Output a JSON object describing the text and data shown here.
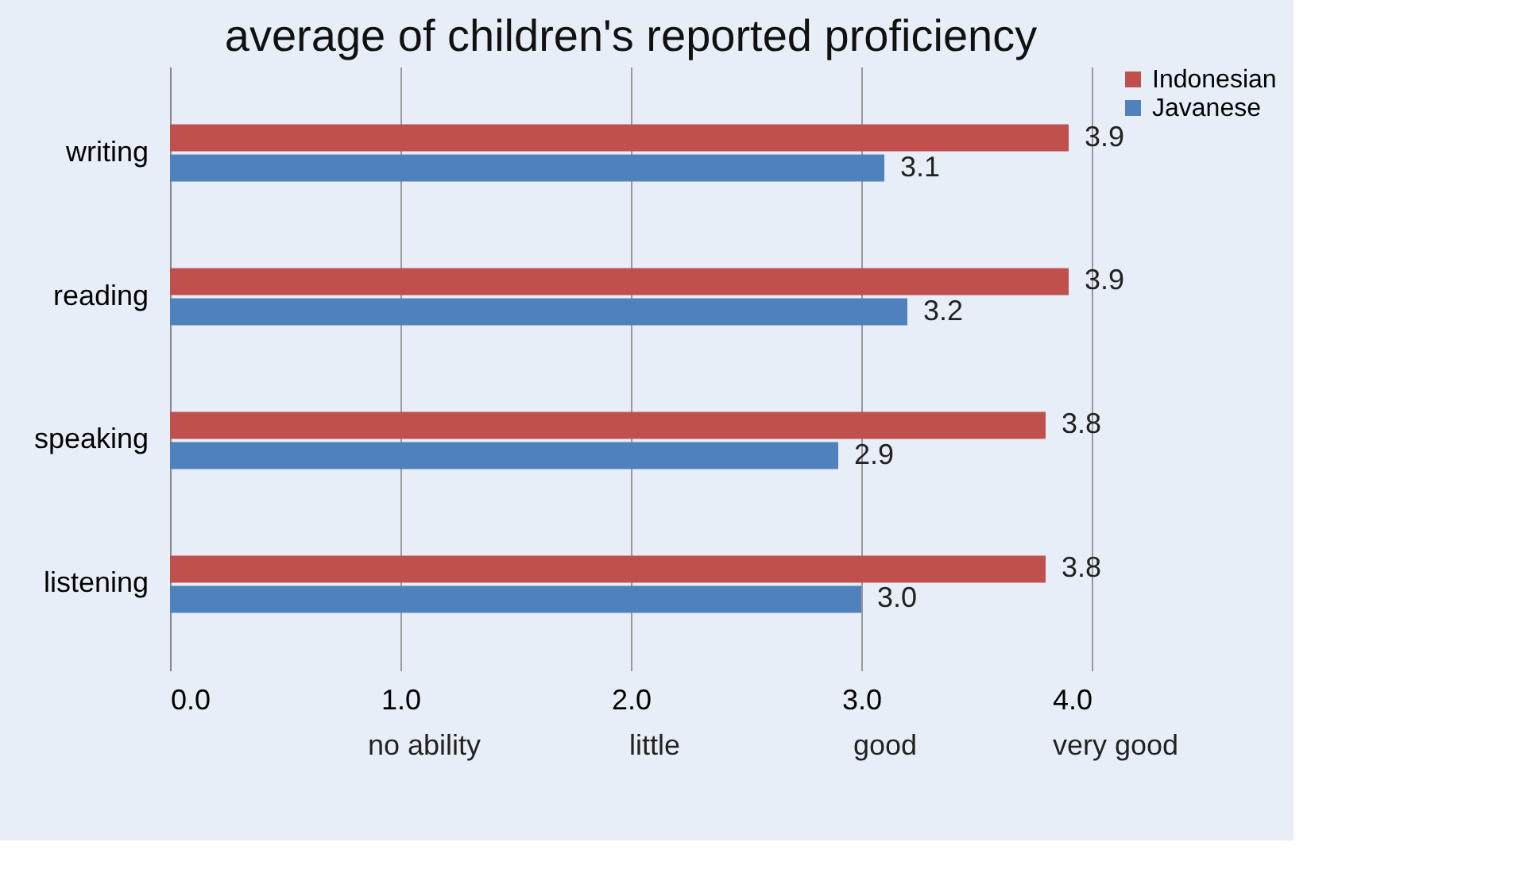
{
  "chart_data": {
    "type": "bar",
    "orientation": "horizontal",
    "title": "average of children's reported proficiency",
    "categories": [
      "writing",
      "reading",
      "speaking",
      "listening"
    ],
    "series": [
      {
        "name": "Indonesian",
        "color": "#c0504d",
        "values": [
          3.9,
          3.9,
          3.8,
          3.8
        ],
        "value_labels": [
          "3.9",
          "3.9",
          "3.8",
          "3.8"
        ]
      },
      {
        "name": "Javanese",
        "color": "#4f81bd",
        "values": [
          3.1,
          3.2,
          2.9,
          3.0
        ],
        "value_labels": [
          "3.1",
          "3.2",
          "2.9",
          "3.0"
        ]
      }
    ],
    "xlim": [
      0,
      4
    ],
    "xticks": [
      {
        "value": 0,
        "label": "0.0"
      },
      {
        "value": 1,
        "label": "1.0"
      },
      {
        "value": 2,
        "label": "2.0"
      },
      {
        "value": 3,
        "label": "3.0"
      },
      {
        "value": 4,
        "label": "4.0"
      }
    ],
    "annotations": [
      "no ability",
      "little",
      "good",
      "very good"
    ],
    "grid": "x",
    "legend": "right"
  }
}
